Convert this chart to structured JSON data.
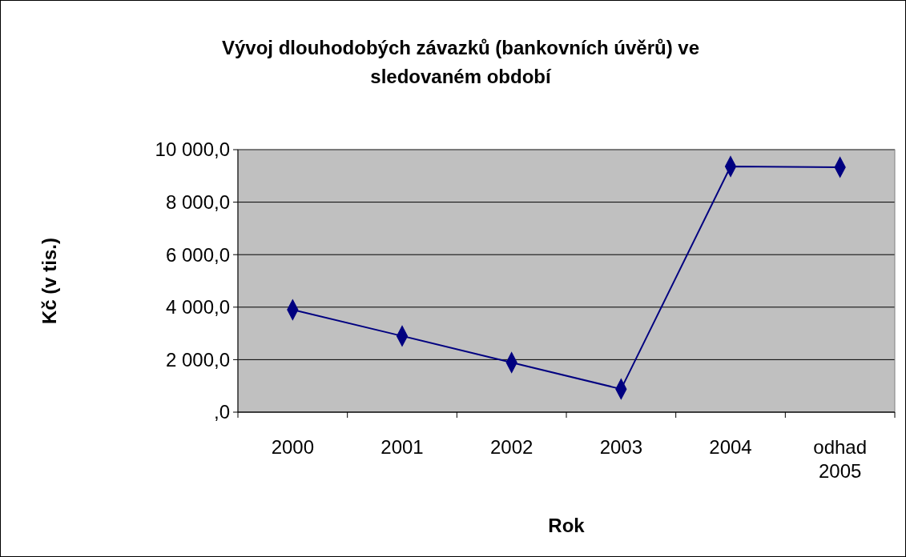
{
  "chart_data": {
    "type": "line",
    "title": "Vývoj dlouhodobých závazků (bankovních úvěrů) ve sledovaném období",
    "xlabel": "Rok",
    "ylabel": "Kč (v tis.)",
    "categories": [
      "2000",
      "2001",
      "2002",
      "2003",
      "2004",
      "odhad 2005"
    ],
    "series": [
      {
        "color": "#000080",
        "values": [
          3900,
          2900,
          1890,
          880,
          9360,
          9330
        ]
      }
    ],
    "ylim": [
      0,
      10000
    ],
    "yticks": [
      {
        "value": 0,
        "label": ",0"
      },
      {
        "value": 2000,
        "label": "2 000,0"
      },
      {
        "value": 4000,
        "label": "4 000,0"
      },
      {
        "value": 6000,
        "label": "6 000,0"
      },
      {
        "value": 8000,
        "label": "8 000,0"
      },
      {
        "value": 10000,
        "label": "10 000,0"
      }
    ],
    "grid": "y",
    "marker": "diamond",
    "line_style": "solid"
  }
}
